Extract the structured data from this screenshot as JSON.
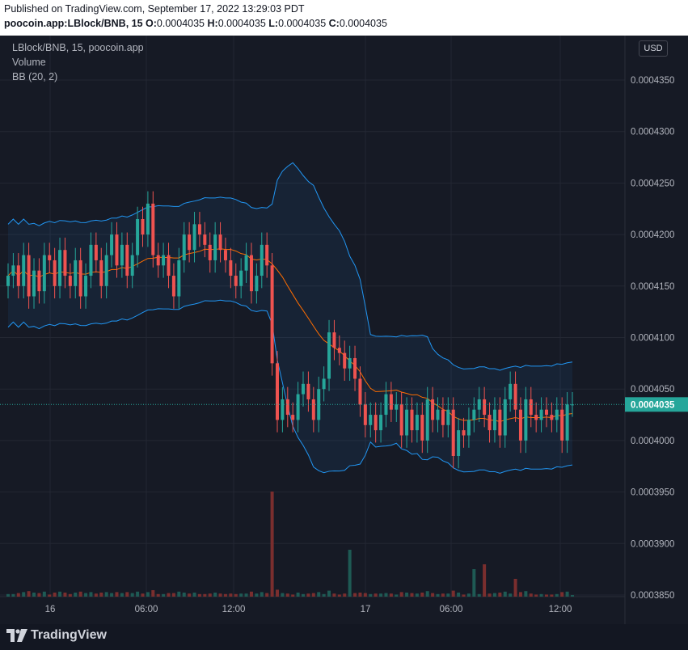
{
  "header": {
    "published": "Published on TradingView.com, September 17, 2022 13:29:03 PDT",
    "symbol_line": "poocoin.app:LBlock/BNB, 15",
    "ohlc": [
      {
        "key": "O:",
        "value": "0.0004035"
      },
      {
        "key": "H:",
        "value": "0.0004035"
      },
      {
        "key": "L:",
        "value": "0.0004035"
      },
      {
        "key": "C:",
        "value": "0.0004035"
      }
    ]
  },
  "legend": {
    "title": "LBlock/BNB, 15, poocoin.app",
    "volume": "Volume",
    "bb": "BB (20, 2)"
  },
  "currency_button": "USD",
  "footer": {
    "logo_text": "TradingView"
  },
  "colors": {
    "up": "#26a69a",
    "down": "#ef5350",
    "band": "#2196f3",
    "basis": "#ff6d00",
    "vol_up": "#1e5a54",
    "vol_down": "#7a2e2e",
    "last_price": "#26a69a"
  },
  "chart_data": {
    "type": "candlestick",
    "y_ticks": [
      "0.0004350",
      "0.0004300",
      "0.0004250",
      "0.0004200",
      "0.0004150",
      "0.0004100",
      "0.0004050",
      "0.0004000",
      "0.0003950",
      "0.0003900",
      "0.0003850"
    ],
    "x_ticks": [
      "16",
      "06:00",
      "12:00",
      "17",
      "06:00",
      "12:00"
    ],
    "ylim": [
      0.000385,
      0.000435
    ],
    "last_price_label": "0.0004035",
    "close": [
      0.000416,
      0.000417,
      0.000415,
      0.000418,
      0.000414,
      0.0004165,
      0.0004145,
      0.000418,
      0.0004175,
      0.000415,
      0.0004185,
      0.000416,
      0.000415,
      0.0004175,
      0.000414,
      0.000416,
      0.000419,
      0.0004175,
      0.000415,
      0.000418,
      0.00042,
      0.000417,
      0.000419,
      0.000416,
      0.000418,
      0.0004215,
      0.00042,
      0.000423,
      0.000418,
      0.000417,
      0.000418,
      0.000416,
      0.000414,
      0.0004175,
      0.00042,
      0.0004185,
      0.000421,
      0.00042,
      0.000419,
      0.0004175,
      0.00042,
      0.0004185,
      0.0004175,
      0.000416,
      0.000415,
      0.0004165,
      0.000418,
      0.0004145,
      0.000416,
      0.000419,
      0.000417,
      0.0004075,
      0.000402,
      0.000404,
      0.0004025,
      0.000402,
      0.0004045,
      0.0004055,
      0.000404,
      0.000402,
      0.000405,
      0.000406,
      0.0004105,
      0.000409,
      0.0004085,
      0.000407,
      0.000408,
      0.000406,
      0.0004035,
      0.0004015,
      0.0004025,
      0.000401,
      0.0004025,
      0.0004045,
      0.000403,
      0.0004035,
      0.0004005,
      0.000403,
      0.000401,
      0.0004025,
      0.0004,
      0.000404,
      0.000402,
      0.000403,
      0.0004015,
      0.000403,
      0.0003985,
      0.000401,
      0.0004005,
      0.000402,
      0.000403,
      0.000404,
      0.0004025,
      0.000401,
      0.000403,
      0.0004005,
      0.000404,
      0.0004055,
      0.000403,
      0.0004,
      0.000404,
      0.0004025,
      0.000402,
      0.000403,
      0.0004025,
      0.000402,
      0.000403,
      0.0004,
      0.0004035,
      0.0004035
    ],
    "volume_note": "volume bars share x-axis; spikes near 12:30 on 16 and mid-day on 17"
  }
}
